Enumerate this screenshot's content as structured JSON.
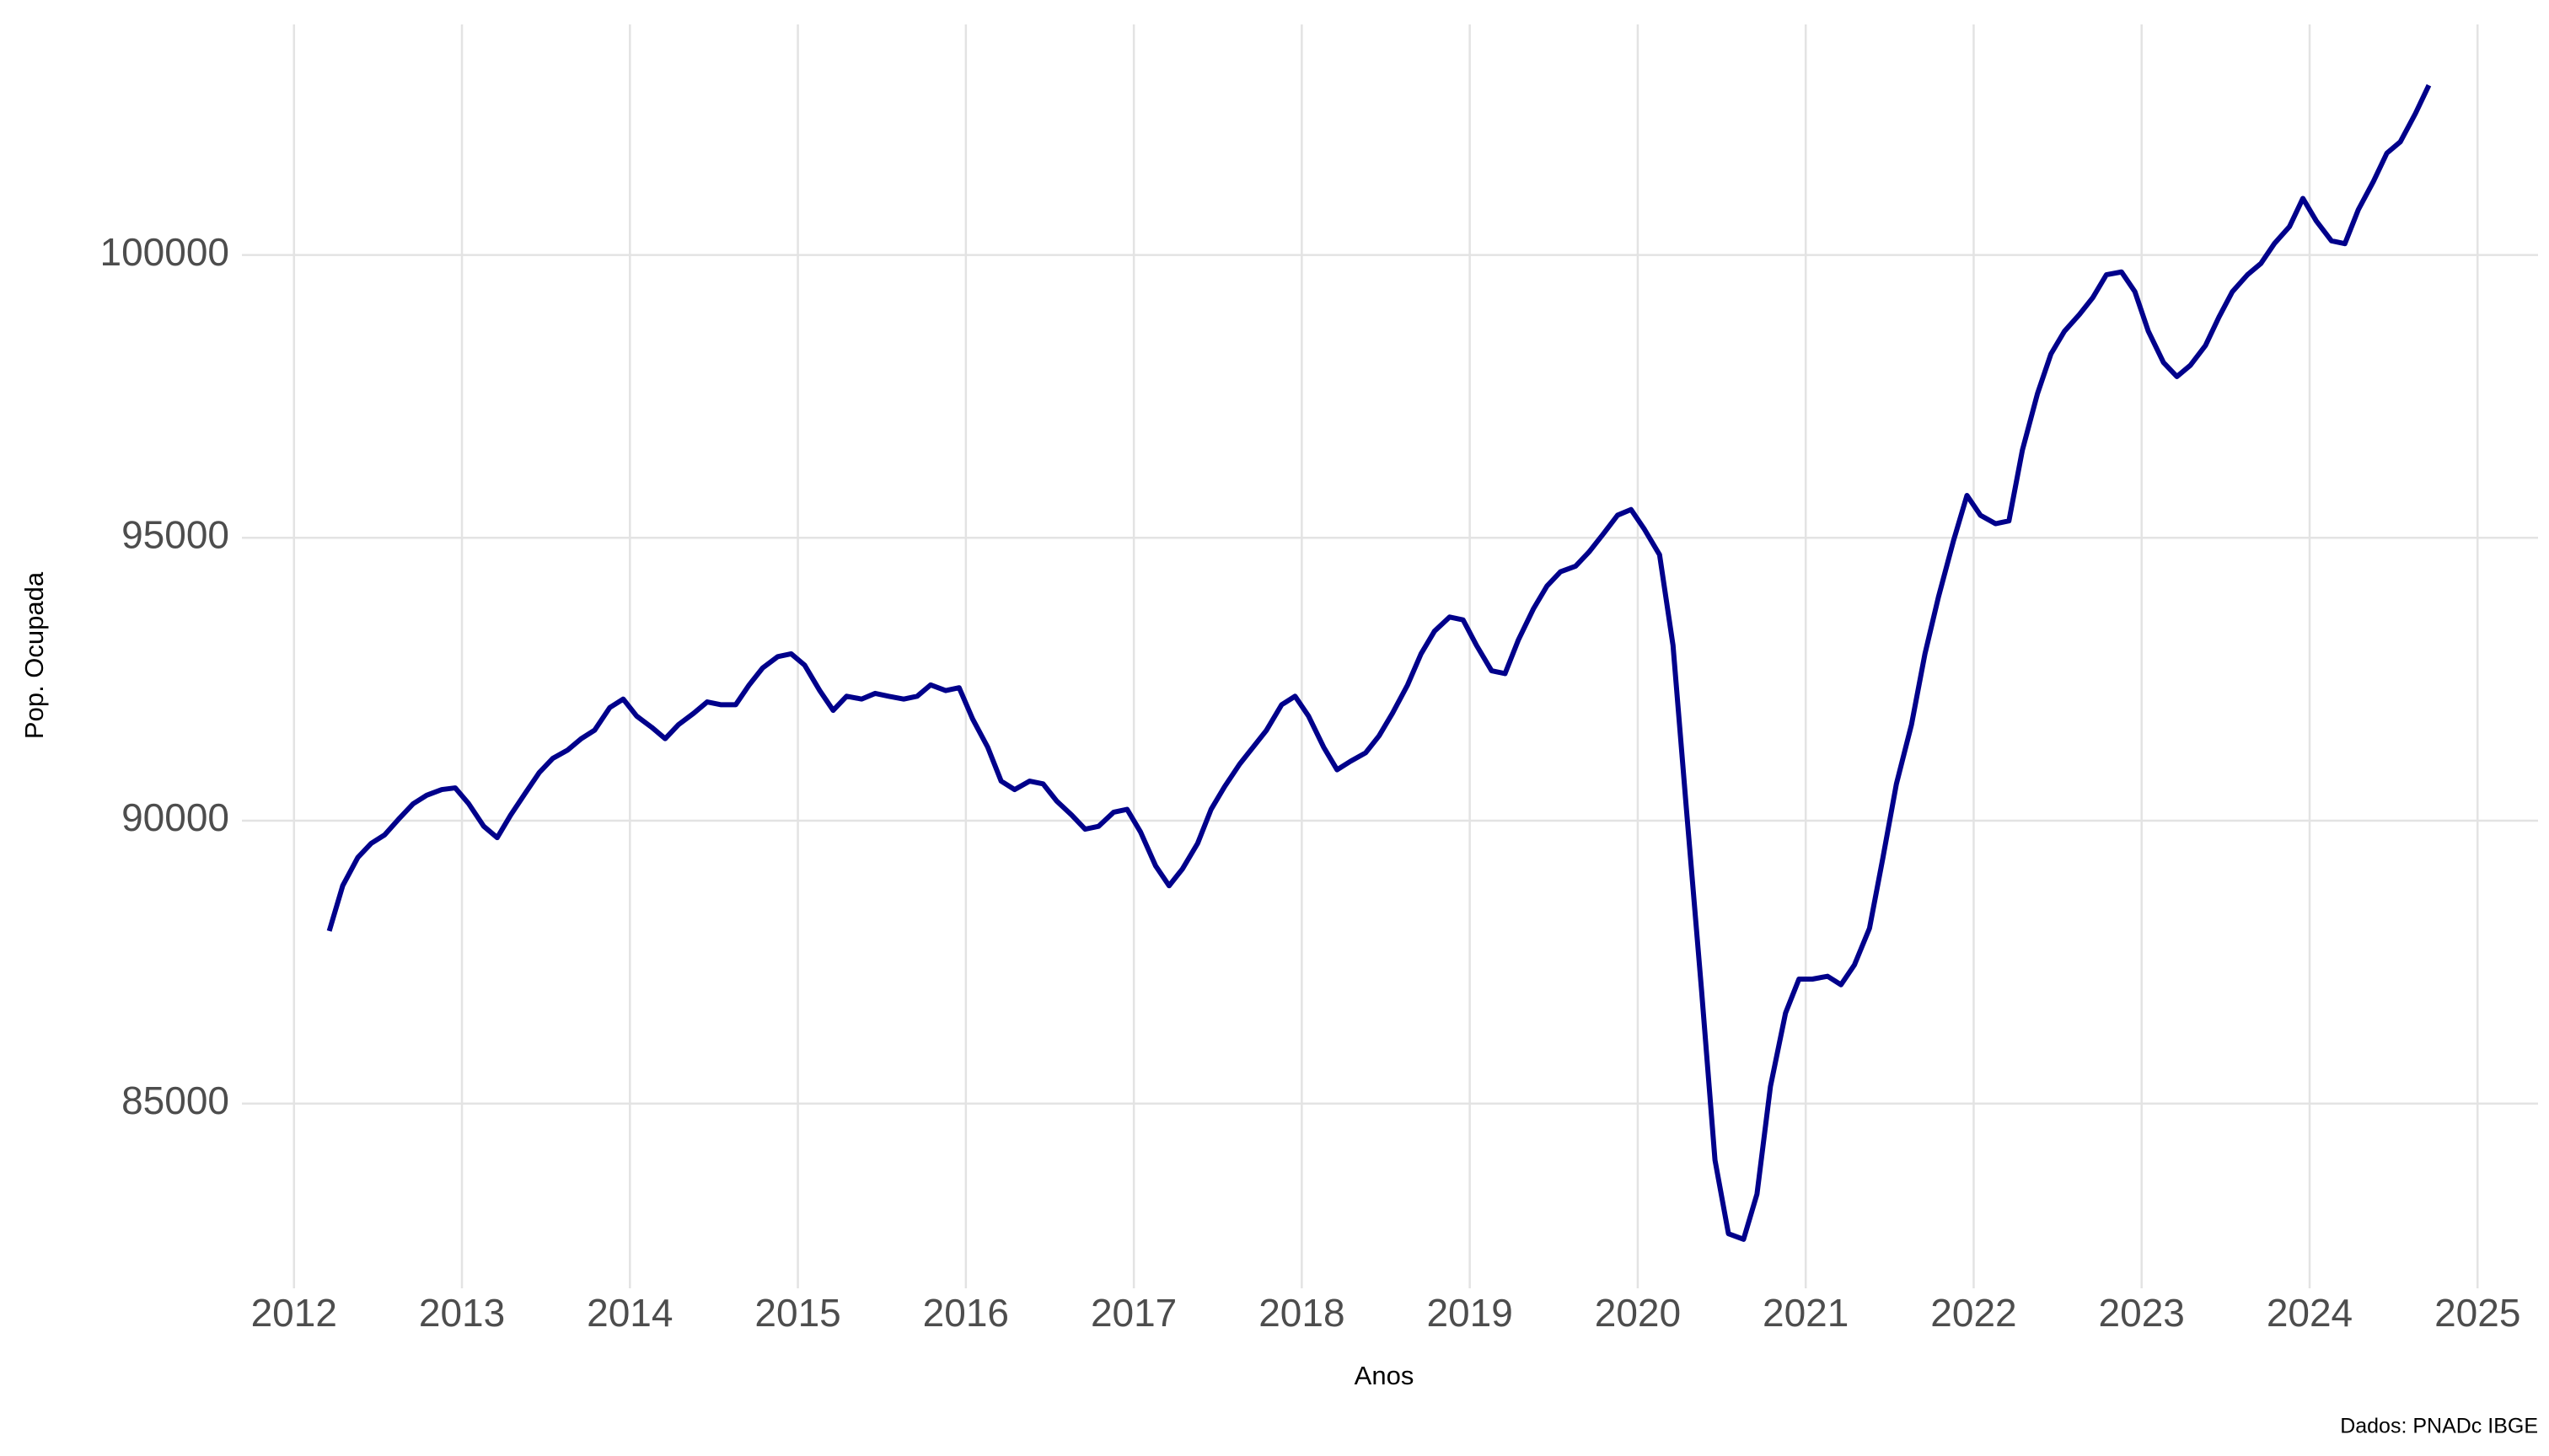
{
  "chart_data": {
    "type": "line",
    "x_label": "Anos",
    "y_label": "Pop. Ocupada",
    "caption": "Dados: PNADc IBGE",
    "x": [
      2012.21,
      2012.29,
      2012.38,
      2012.46,
      2012.54,
      2012.63,
      2012.71,
      2012.79,
      2012.88,
      2012.96,
      2013.04,
      2013.13,
      2013.21,
      2013.29,
      2013.38,
      2013.46,
      2013.54,
      2013.63,
      2013.71,
      2013.79,
      2013.88,
      2013.96,
      2014.04,
      2014.13,
      2014.21,
      2014.29,
      2014.38,
      2014.46,
      2014.54,
      2014.63,
      2014.71,
      2014.79,
      2014.88,
      2014.96,
      2015.04,
      2015.13,
      2015.21,
      2015.29,
      2015.38,
      2015.46,
      2015.54,
      2015.63,
      2015.71,
      2015.79,
      2015.88,
      2015.96,
      2016.04,
      2016.13,
      2016.21,
      2016.29,
      2016.38,
      2016.46,
      2016.54,
      2016.63,
      2016.71,
      2016.79,
      2016.88,
      2016.96,
      2017.04,
      2017.13,
      2017.21,
      2017.29,
      2017.38,
      2017.46,
      2017.54,
      2017.63,
      2017.71,
      2017.79,
      2017.88,
      2017.96,
      2018.04,
      2018.13,
      2018.21,
      2018.29,
      2018.38,
      2018.46,
      2018.54,
      2018.63,
      2018.71,
      2018.79,
      2018.88,
      2018.96,
      2019.04,
      2019.13,
      2019.21,
      2019.29,
      2019.38,
      2019.46,
      2019.54,
      2019.63,
      2019.71,
      2019.79,
      2019.88,
      2019.96,
      2020.04,
      2020.13,
      2020.21,
      2020.29,
      2020.38,
      2020.46,
      2020.54,
      2020.63,
      2020.71,
      2020.79,
      2020.88,
      2020.96,
      2021.04,
      2021.13,
      2021.21,
      2021.29,
      2021.38,
      2021.46,
      2021.54,
      2021.63,
      2021.71,
      2021.79,
      2021.88,
      2021.96,
      2022.04,
      2022.13,
      2022.21,
      2022.29,
      2022.38,
      2022.46,
      2022.54,
      2022.63,
      2022.71,
      2022.79,
      2022.88,
      2022.96,
      2023.04,
      2023.13,
      2023.21,
      2023.29,
      2023.38,
      2023.46,
      2023.54,
      2023.63,
      2023.71,
      2023.79,
      2023.88,
      2023.96,
      2024.04,
      2024.13,
      2024.21,
      2024.29,
      2024.38,
      2024.46,
      2024.54,
      2024.63,
      2024.71
    ],
    "series": [
      {
        "color": "#00008b",
        "values": [
          88050,
          88850,
          89350,
          89600,
          89750,
          90050,
          90300,
          90450,
          90550,
          90580,
          90300,
          89900,
          89700,
          90100,
          90500,
          90850,
          91100,
          91250,
          91450,
          91600,
          92000,
          92150,
          91850,
          91650,
          91450,
          91700,
          91900,
          92100,
          92050,
          92050,
          92400,
          92700,
          92900,
          92950,
          92750,
          92300,
          91950,
          92200,
          92150,
          92250,
          92200,
          92150,
          92200,
          92400,
          92300,
          92350,
          91800,
          91300,
          90700,
          90550,
          90700,
          90650,
          90350,
          90100,
          89850,
          89900,
          90150,
          90200,
          89800,
          89200,
          88850,
          89150,
          89600,
          90200,
          90600,
          91000,
          91300,
          91600,
          92050,
          92200,
          91850,
          91300,
          90900,
          91050,
          91200,
          91500,
          91900,
          92400,
          92950,
          93350,
          93600,
          93550,
          93100,
          92650,
          92600,
          93200,
          93750,
          94150,
          94400,
          94500,
          94750,
          95050,
          95400,
          95500,
          95150,
          94700,
          93100,
          90200,
          87000,
          84000,
          82700,
          82600,
          83400,
          85300,
          86600,
          87200,
          87200,
          87250,
          87100,
          87450,
          88100,
          89350,
          90650,
          91700,
          92950,
          93950,
          94950,
          95750,
          95400,
          95250,
          95300,
          96550,
          97550,
          98250,
          98650,
          98950,
          99250,
          99650,
          99700,
          99350,
          98650,
          98100,
          97850,
          98050,
          98400,
          98900,
          99350,
          99650,
          99850,
          100200,
          100500,
          101000,
          100600,
          100250,
          100200,
          100800,
          101300,
          101800,
          102000,
          102500,
          103000
        ]
      }
    ],
    "xlim": [
      2011.69,
      2025.36
    ],
    "ylim": [
      81734,
      104075
    ],
    "xticks": [
      2012,
      2013,
      2014,
      2015,
      2016,
      2017,
      2018,
      2019,
      2020,
      2021,
      2022,
      2023,
      2024,
      2025
    ],
    "yticks": [
      85000,
      90000,
      95000,
      100000
    ],
    "grid": true
  }
}
